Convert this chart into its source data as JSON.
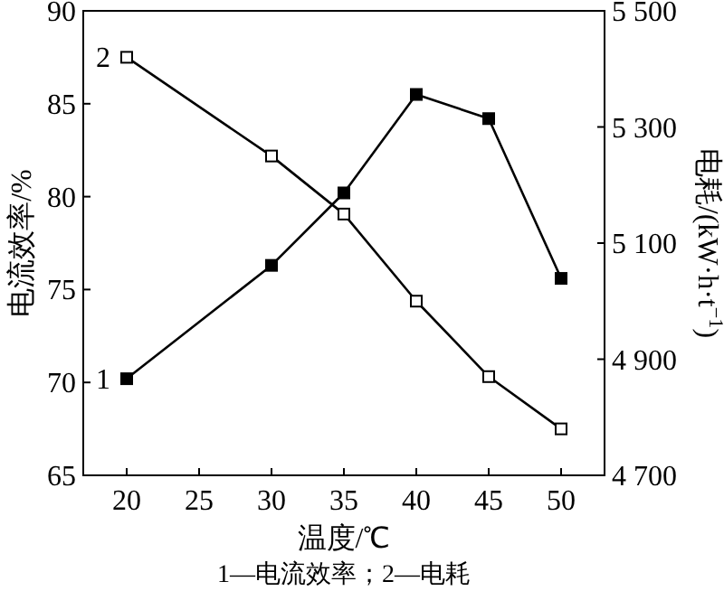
{
  "chart_data": {
    "type": "line",
    "xlabel": "温度/℃",
    "ylabel": "电流效率/%",
    "y2label": "电耗/(kW·h·t$^{−1}$)",
    "x": [
      20,
      30,
      35,
      40,
      45,
      50
    ],
    "xlim": [
      17,
      53
    ],
    "xticks": [
      20,
      25,
      30,
      35,
      40,
      45,
      50
    ],
    "ylim": [
      65,
      90
    ],
    "yticks": [
      65,
      70,
      75,
      80,
      85,
      90
    ],
    "y2lim": [
      4700,
      5500
    ],
    "y2ticks": [
      {
        "value": 4700,
        "label": "4 700"
      },
      {
        "value": 4900,
        "label": "4 900"
      },
      {
        "value": 5100,
        "label": "5 100"
      },
      {
        "value": 5300,
        "label": "5 300"
      },
      {
        "value": 5500,
        "label": "5 500"
      }
    ],
    "marker": "square",
    "line_style": "solid",
    "grid": false,
    "legend": false,
    "series": [
      {
        "name": "1",
        "color": "#000000",
        "values": [
          70.2,
          76.3,
          80.2,
          85.5,
          84.2,
          75.6
        ]
      },
      {
        "name": "2",
        "color": "#000000",
        "axis": "y2",
        "values": [
          5420,
          5250,
          5150,
          5000,
          4870,
          4780
        ]
      }
    ],
    "annotations": [
      "1—电流效率；2—电耗"
    ]
  }
}
